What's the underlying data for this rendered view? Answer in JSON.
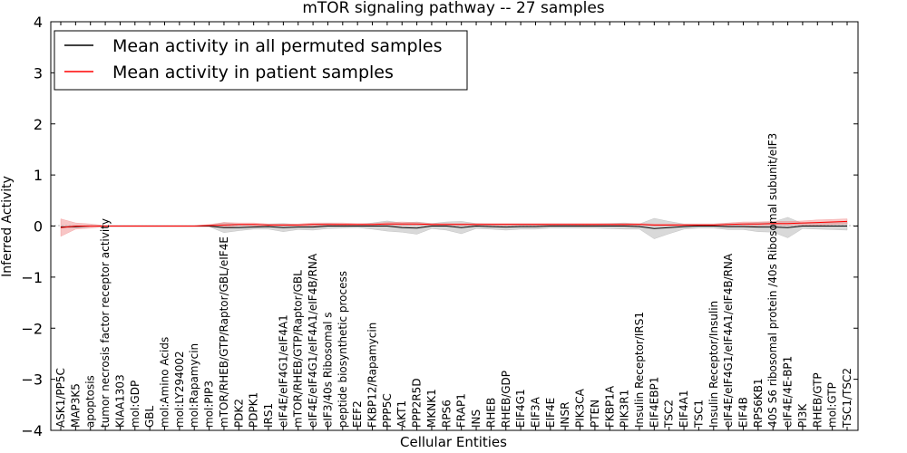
{
  "chart_data": {
    "type": "line",
    "title": "mTOR signaling pathway -- 27 samples",
    "xlabel": "Cellular Entities",
    "ylabel": "Inferred Activity",
    "ylim": [
      -4,
      4
    ],
    "yticks": [
      -4,
      -3,
      -2,
      -1,
      0,
      1,
      2,
      3,
      4
    ],
    "ytick_labels": [
      "−4",
      "−3",
      "−2",
      "−1",
      "0",
      "1",
      "2",
      "3",
      "4"
    ],
    "legend_position": "top-left",
    "categories": [
      "ASK1/PP5C",
      "MAP3K5",
      "apoptosis",
      "tumor necrosis factor receptor activity",
      "KIAA1303",
      "mol:GDP",
      "GBL",
      "mol:Amino Acids",
      "mol:LY294002",
      "mol:Rapamycin",
      "mol:PIP3",
      "mTOR/RHEB/GTP/Raptor/GBL/eIF4E",
      "PDK2",
      "PDPK1",
      "IRS1",
      "eIF4E/eIF4G1/eIF4A1",
      "mTOR/RHEB/GTP/Raptor/GBL",
      "eIF4E/eIF4G1/eIF4A1/eIF4B/RNA",
      "eIF3/40s Ribosomal s",
      "peptide biosynthetic process",
      "EEF2",
      "FKBP12/Rapamycin",
      "PPP5C",
      "AKT1",
      "PPP2R5D",
      "MKNK1",
      "RPS6",
      "FRAP1",
      "INS",
      "RHEB",
      "RHEB/GDP",
      "EIF4G1",
      "EIF3A",
      "EIF4E",
      "INSR",
      "PIK3CA",
      "PTEN",
      "FKBP1A",
      "PIK3R1",
      "Insulin Receptor/IRS1",
      "EIF4EBP1",
      "TSC2",
      "EIF4A1",
      "TSC1",
      "Insulin Receptor/Insulin",
      "eIF4E/eIF4G1/eIF4A1/eIF4B/RNA",
      "EIF4B",
      "RPS6KB1",
      "40S S6 ribosomal protein /40s Ribosomal subunit/eIF3",
      "eIF4E/4E-BP1",
      "PI3K",
      "RHEB/GTP",
      "mol:GTP",
      "TSC1/TSC2"
    ],
    "series": [
      {
        "name": "Mean activity in all permuted samples",
        "color": "#000000",
        "band_color": "#aaaaaa",
        "values": [
          -0.02,
          -0.01,
          0,
          0,
          0,
          0,
          0,
          0,
          0,
          0,
          0,
          -0.03,
          -0.03,
          -0.02,
          -0.01,
          -0.03,
          -0.02,
          -0.02,
          0,
          0,
          0,
          0,
          0,
          -0.03,
          -0.04,
          0,
          0,
          -0.03,
          0,
          -0.01,
          -0.02,
          -0.01,
          -0.01,
          0,
          0,
          0,
          0,
          0,
          0,
          -0.01,
          -0.05,
          -0.03,
          -0.01,
          0,
          0,
          -0.01,
          -0.01,
          -0.02,
          -0.02,
          -0.03,
          0,
          0,
          0,
          0
        ],
        "band": [
          0.02,
          0.02,
          0.01,
          0.01,
          0.01,
          0.01,
          0.01,
          0.01,
          0.01,
          0.01,
          0.01,
          0.1,
          0.06,
          0.04,
          0.05,
          0.08,
          0.05,
          0.06,
          0.05,
          0.04,
          0.03,
          0.06,
          0.1,
          0.09,
          0.12,
          0.05,
          0.08,
          0.12,
          0.05,
          0.05,
          0.06,
          0.05,
          0.05,
          0.04,
          0.04,
          0.04,
          0.04,
          0.05,
          0.06,
          0.05,
          0.2,
          0.12,
          0.05,
          0.04,
          0.04,
          0.06,
          0.06,
          0.09,
          0.1,
          0.2,
          0.05,
          0.06,
          0.07,
          0.08
        ]
      },
      {
        "name": "Mean activity in patient samples",
        "color": "#ff0000",
        "band_color": "#f08080",
        "values": [
          -0.03,
          0,
          0,
          0,
          0,
          0,
          0,
          0,
          0,
          0,
          0.01,
          0.02,
          0.03,
          0.03,
          0.02,
          0.02,
          0.02,
          0.03,
          0.03,
          0.03,
          0.03,
          0.03,
          0.04,
          0.04,
          0.04,
          0.03,
          0.03,
          0.03,
          0.03,
          0.03,
          0.03,
          0.03,
          0.03,
          0.03,
          0.03,
          0.03,
          0.03,
          0.03,
          0.03,
          0.03,
          0.02,
          0.02,
          0.02,
          0.02,
          0.02,
          0.03,
          0.04,
          0.04,
          0.05,
          0.05,
          0.06,
          0.07,
          0.08,
          0.09
        ],
        "band": [
          0.17,
          0.06,
          0.04,
          0.01,
          0.01,
          0.01,
          0.01,
          0.01,
          0.01,
          0.01,
          0.02,
          0.05,
          0.03,
          0.03,
          0.02,
          0.02,
          0.02,
          0.03,
          0.03,
          0.03,
          0.02,
          0.02,
          0.03,
          0.04,
          0.03,
          0.02,
          0.02,
          0.02,
          0.02,
          0.02,
          0.02,
          0.02,
          0.02,
          0.02,
          0.02,
          0.02,
          0.02,
          0.02,
          0.02,
          0.02,
          0.02,
          0.02,
          0.02,
          0.02,
          0.02,
          0.03,
          0.04,
          0.04,
          0.04,
          0.04,
          0.04,
          0.05,
          0.05,
          0.05
        ]
      }
    ],
    "legend": [
      "Mean activity in all permuted samples",
      "Mean activity in patient samples"
    ]
  }
}
